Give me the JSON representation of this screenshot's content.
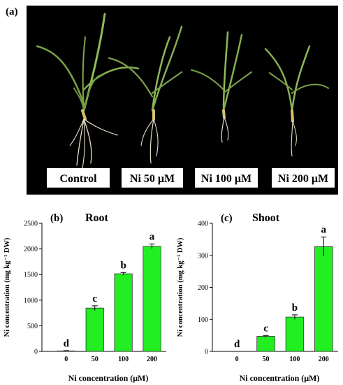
{
  "panel_a": {
    "label": "(a)",
    "labels": [
      "Control",
      "Ni 50 μM",
      "Ni 100 μM",
      "Ni 200 μM"
    ]
  },
  "colors": {
    "bar_fill": "#22ee22",
    "bar_stroke": "#333333",
    "photo_bg": "#000000"
  },
  "chart_data": [
    {
      "type": "bar",
      "panel_label": "(b)",
      "title": "Root",
      "categories": [
        "0",
        "50",
        "100",
        "200"
      ],
      "values": [
        10,
        845,
        1515,
        2050
      ],
      "errors": [
        5,
        45,
        25,
        45
      ],
      "letters": [
        "d",
        "c",
        "b",
        "a"
      ],
      "xlabel": "Ni concentration (μM)",
      "ylabel": "Ni concentration (mg kg⁻¹ DW)",
      "ylim": [
        0,
        2500
      ],
      "yticks": [
        "0",
        "500",
        "1000",
        "1500",
        "2000",
        "2500"
      ]
    },
    {
      "type": "bar",
      "panel_label": "(c)",
      "title": "Shoot",
      "categories": [
        "0",
        "50",
        "100",
        "200"
      ],
      "values": [
        0,
        47,
        107,
        327
      ],
      "errors": [
        0,
        2,
        7,
        30
      ],
      "letters": [
        "d",
        "c",
        "b",
        "a"
      ],
      "xlabel": "Ni concentration (μM)",
      "ylabel": "Ni concentration (mg kg⁻¹ DW)",
      "ylim": [
        0,
        400
      ],
      "yticks": [
        "0",
        "100",
        "200",
        "300",
        "400"
      ]
    }
  ]
}
